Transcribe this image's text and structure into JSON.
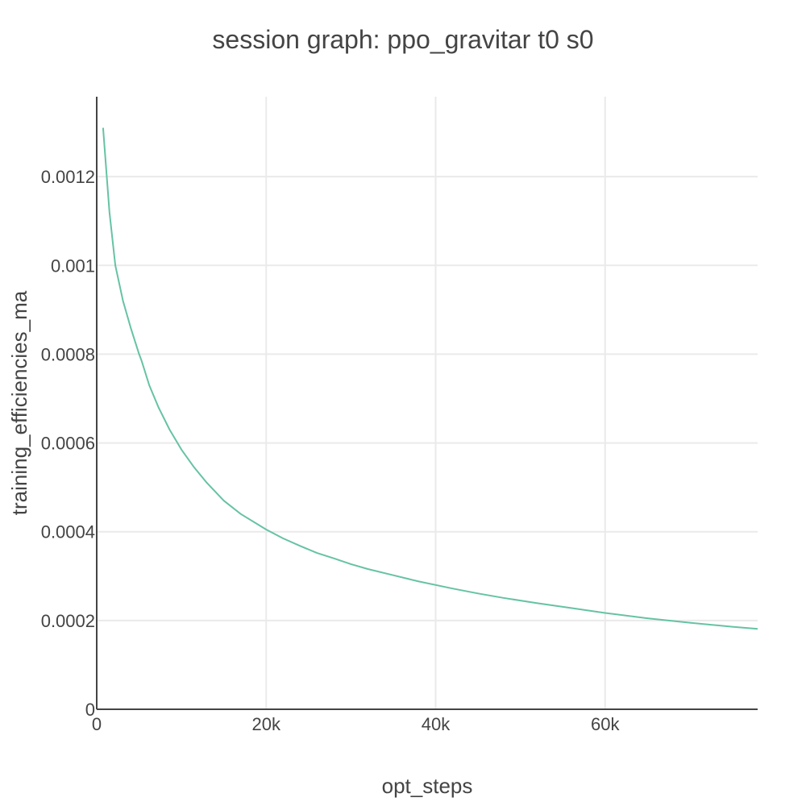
{
  "chart_data": {
    "type": "line",
    "title": "session graph: ppo_gravitar t0 s0",
    "xlabel": "opt_steps",
    "ylabel": "training_efficiencies_ma",
    "xlim": [
      0,
      78000
    ],
    "ylim": [
      0,
      0.00138
    ],
    "x_ticks": [
      0,
      20000,
      40000,
      60000
    ],
    "x_tick_labels": [
      "0",
      "20k",
      "40k",
      "60k"
    ],
    "y_ticks": [
      0,
      0.0002,
      0.0004,
      0.0006,
      0.0008,
      0.001,
      0.0012
    ],
    "y_tick_labels": [
      "0",
      "0.0002",
      "0.0004",
      "0.0006",
      "0.0008",
      "0.001",
      "0.0012"
    ],
    "grid": true,
    "line_color": "#66c2a5",
    "series": [
      {
        "x": [
          750,
          1500,
          2200,
          3100,
          4000,
          5000,
          5300,
          6200,
          7300,
          8600,
          10000,
          11500,
          13000,
          15000,
          17000,
          20000,
          22000,
          24000,
          26000,
          28000,
          30000,
          32000,
          35000,
          38000,
          42000,
          45000,
          48000,
          52000,
          56000,
          60000,
          65000,
          70000,
          75000,
          78000
        ],
        "y": [
          0.00131,
          0.00112,
          0.001,
          0.00092,
          0.00086,
          0.0008,
          0.000785,
          0.00073,
          0.00068,
          0.00063,
          0.000585,
          0.000545,
          0.00051,
          0.00047,
          0.00044,
          0.000405,
          0.000385,
          0.000368,
          0.000352,
          0.00034,
          0.000327,
          0.000316,
          0.000302,
          0.000288,
          0.000272,
          0.000261,
          0.000251,
          0.000239,
          0.000228,
          0.000217,
          0.000205,
          0.000195,
          0.000186,
          0.000181
        ]
      }
    ]
  }
}
